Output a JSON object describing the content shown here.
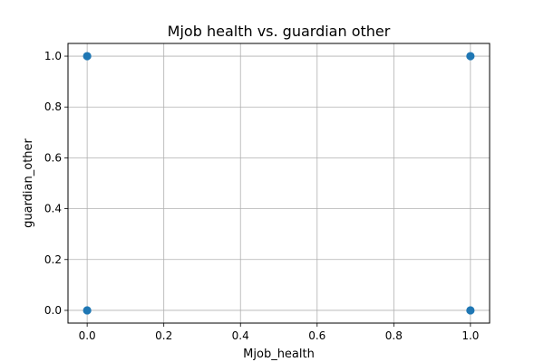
{
  "chart_data": {
    "type": "scatter",
    "title": "Mjob health vs. guardian other",
    "xlabel": "Mjob_health",
    "ylabel": "guardian_other",
    "xlim": [
      -0.05,
      1.05
    ],
    "ylim": [
      -0.05,
      1.05
    ],
    "xticks": [
      0.0,
      0.2,
      0.4,
      0.6,
      0.8,
      1.0
    ],
    "yticks": [
      0.0,
      0.2,
      0.4,
      0.6,
      0.8,
      1.0
    ],
    "xtick_labels": [
      "0.0",
      "0.2",
      "0.4",
      "0.6",
      "0.8",
      "1.0"
    ],
    "ytick_labels": [
      "0.0",
      "0.2",
      "0.4",
      "0.6",
      "0.8",
      "1.0"
    ],
    "grid": true,
    "point_color": "#1f77b4",
    "points": [
      {
        "x": 0,
        "y": 1
      },
      {
        "x": 0,
        "y": 0
      },
      {
        "x": 1,
        "y": 1
      },
      {
        "x": 1,
        "y": 0
      }
    ]
  }
}
